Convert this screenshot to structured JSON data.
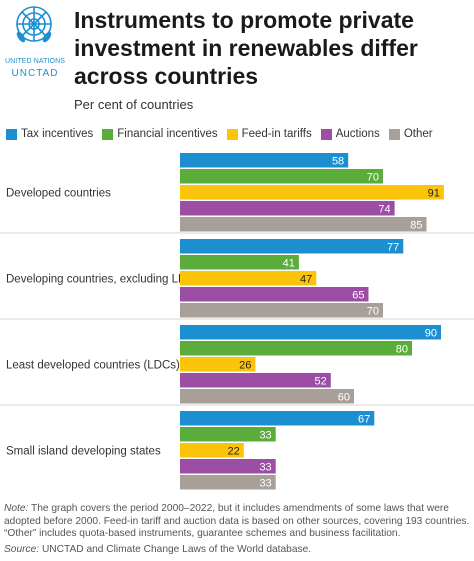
{
  "logo": {
    "org_line1": "UNITED NATIONS",
    "org_line2": "UNCTAD"
  },
  "header": {
    "title": "Instruments to promote private investment in renewables differ across countries",
    "subtitle": "Per cent of countries"
  },
  "chart_data": {
    "type": "bar",
    "orientation": "horizontal",
    "title": "Instruments to promote private investment in renewables differ across countries",
    "subtitle": "Per cent of countries",
    "categories": [
      "Developed countries",
      "Developing countries, excluding LDCs",
      "Least developed countries (LDCs)",
      "Small island developing states"
    ],
    "series": [
      {
        "name": "Tax incentives",
        "color": "#1b8fd0",
        "values": [
          58,
          77,
          90,
          67
        ]
      },
      {
        "name": "Financial incentives",
        "color": "#5aad3b",
        "values": [
          70,
          41,
          80,
          33
        ]
      },
      {
        "name": "Feed-in tariffs",
        "color": "#fcc30b",
        "values": [
          91,
          47,
          26,
          22
        ]
      },
      {
        "name": "Auctions",
        "color": "#9b4ea3",
        "values": [
          74,
          65,
          52,
          33
        ]
      },
      {
        "name": "Other",
        "color": "#a99f99",
        "values": [
          85,
          70,
          60,
          33
        ]
      }
    ],
    "xlim": [
      0,
      100
    ],
    "legend": "top",
    "grid": false,
    "data_labels": true
  },
  "footer": {
    "note_label": "Note:",
    "note_text": " The graph covers the period 2000–2022, but it includes amendments of some laws that were adopted before 2000. Feed-in tariff and auction data is based on other sources, covering 193 countries. “Other” includes quota-based instruments, guarantee schemes and business facilitation.",
    "source_label": "Source:",
    "source_text": " UNCTAD and Climate Change Laws of the World database."
  }
}
